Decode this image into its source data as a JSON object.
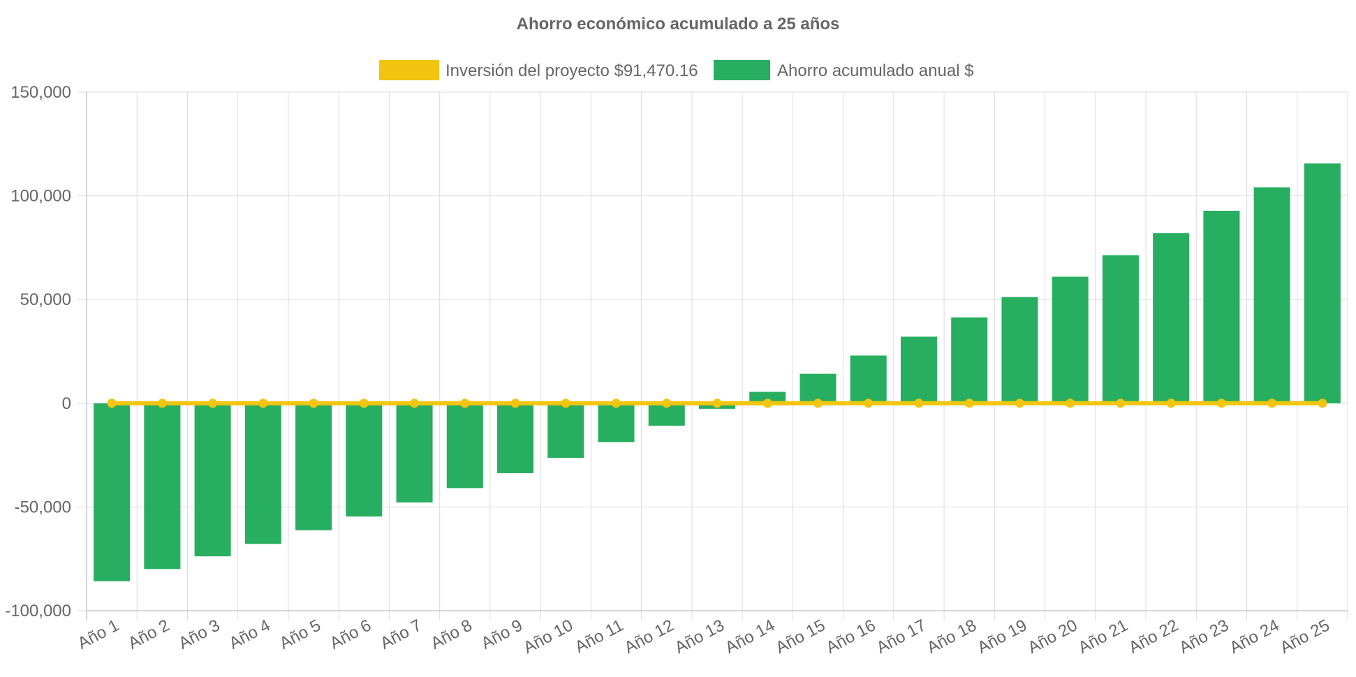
{
  "chart_data": {
    "type": "bar",
    "title": "Ahorro económico acumulado a 25 años",
    "categories": [
      "Año 1",
      "Año 2",
      "Año 3",
      "Año 4",
      "Año 5",
      "Año 6",
      "Año 7",
      "Año 8",
      "Año 9",
      "Año 10",
      "Año 11",
      "Año 12",
      "Año 13",
      "Año 14",
      "Año 15",
      "Año 16",
      "Año 17",
      "Año 18",
      "Año 19",
      "Año 20",
      "Año 21",
      "Año 22",
      "Año 23",
      "Año 24",
      "Año 25"
    ],
    "series": [
      {
        "name": "Inversión del proyecto $91,470.16",
        "type": "line",
        "color": "#f2c511",
        "values": [
          0,
          0,
          0,
          0,
          0,
          0,
          0,
          0,
          0,
          0,
          0,
          0,
          0,
          0,
          0,
          0,
          0,
          0,
          0,
          0,
          0,
          0,
          0,
          0,
          0
        ]
      },
      {
        "name": "Ahorro acumulado anual $",
        "type": "bar",
        "color": "#27ae60",
        "values": [
          -85800,
          -79900,
          -73800,
          -67800,
          -61200,
          -54600,
          -47800,
          -40900,
          -33700,
          -26300,
          -18700,
          -10800,
          -2700,
          5500,
          14200,
          23000,
          32100,
          41400,
          51200,
          61000,
          71400,
          82000,
          92800,
          104100,
          115600
        ]
      }
    ],
    "xlabel": "",
    "ylabel": "",
    "ylim": [
      -100000,
      150000
    ],
    "yticks": [
      "150,000",
      "100,000",
      "50,000",
      "0",
      "-50,000",
      "-100,000"
    ],
    "ytick_values": [
      150000,
      100000,
      50000,
      0,
      -50000,
      -100000
    ],
    "grid": true,
    "legend_position": "top-center"
  }
}
